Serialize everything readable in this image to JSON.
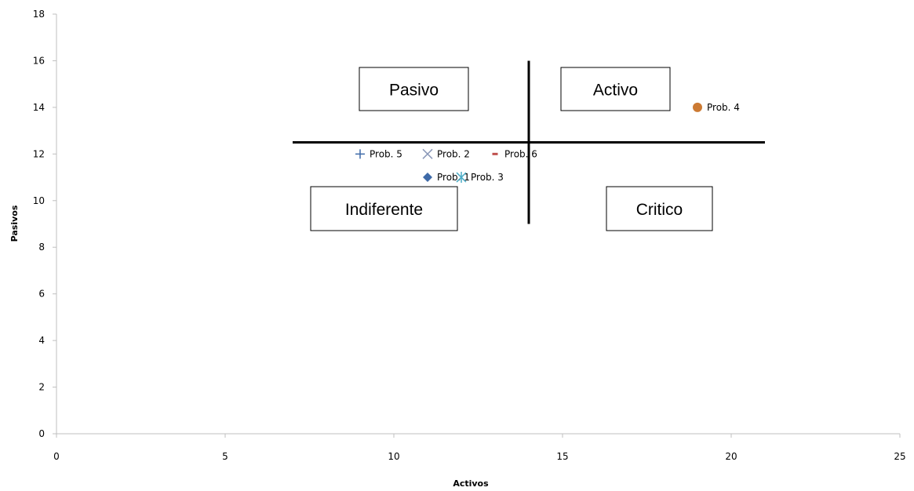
{
  "chart_data": {
    "type": "scatter",
    "xlabel": "Activos",
    "ylabel": "Pasivos",
    "xlim": [
      0,
      25
    ],
    "ylim": [
      0,
      18
    ],
    "x_ticks": [
      0,
      5,
      10,
      15,
      20,
      25
    ],
    "y_ticks": [
      0,
      2,
      4,
      6,
      8,
      10,
      12,
      14,
      16,
      18
    ],
    "grid": false,
    "points": [
      {
        "name": "Prob. 1",
        "x": 11,
        "y": 11,
        "marker": "diamond",
        "color": "#3e6aa8"
      },
      {
        "name": "Prob. 2",
        "x": 11,
        "y": 12,
        "marker": "x",
        "color": "#8a98b8"
      },
      {
        "name": "Prob. 3",
        "x": 12,
        "y": 11,
        "marker": "star",
        "color": "#4bacc6"
      },
      {
        "name": "Prob. 4",
        "x": 19,
        "y": 14,
        "marker": "circle",
        "color": "#cc7a33"
      },
      {
        "name": "Prob. 5",
        "x": 9,
        "y": 12,
        "marker": "plus",
        "color": "#3e6aa8"
      },
      {
        "name": "Prob. 6",
        "x": 13,
        "y": 12,
        "marker": "dash",
        "color": "#c0504d"
      }
    ],
    "reference_lines": {
      "horizontal": {
        "y": 12.5,
        "x_from": 7,
        "x_to": 21
      },
      "vertical": {
        "x": 14,
        "y_from": 9,
        "y_to": 16
      }
    },
    "quadrant_labels": {
      "top_left": "Pasivo",
      "top_right": "Activo",
      "bottom_left": "Indiferente",
      "bottom_right": "Critico"
    }
  }
}
